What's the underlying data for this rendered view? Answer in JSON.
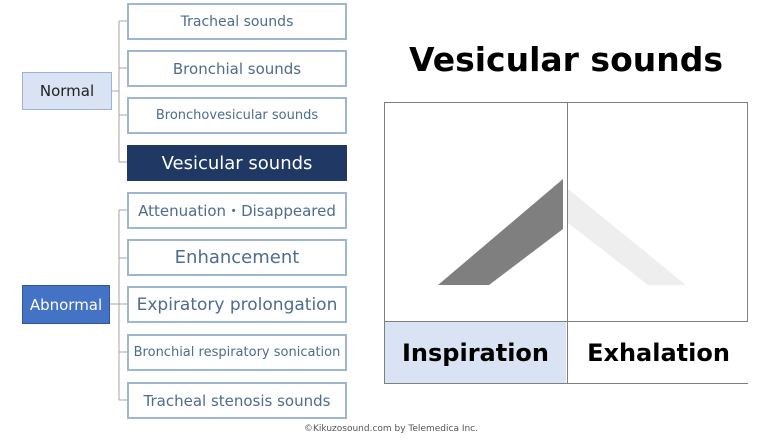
{
  "categories": {
    "normal": "Normal",
    "abnormal": "Abnormal"
  },
  "normal_items": [
    "Tracheal sounds",
    "Bronchial sounds",
    "Bronchovesicular sounds",
    "Vesicular sounds"
  ],
  "abnormal_items": [
    "Attenuation・Disappeared",
    "Enhancement",
    "Expiratory prolongation",
    "Bronchial respiratory sonication",
    "Tracheal stenosis sounds"
  ],
  "selected_item": "Vesicular sounds",
  "title": "Vesicular sounds",
  "phases": {
    "inspiration": "Inspiration",
    "exhalation": "Exhalation"
  },
  "colors": {
    "selected_fill": "#1f3864",
    "normal_fill": "#dae3f3",
    "abnormal_fill": "#4472c4",
    "inspiration_shape": "#7f7f7f",
    "exhalation_shape": "#eeeeee"
  },
  "footer": "©Kikuzosound.com by Telemedica Inc."
}
